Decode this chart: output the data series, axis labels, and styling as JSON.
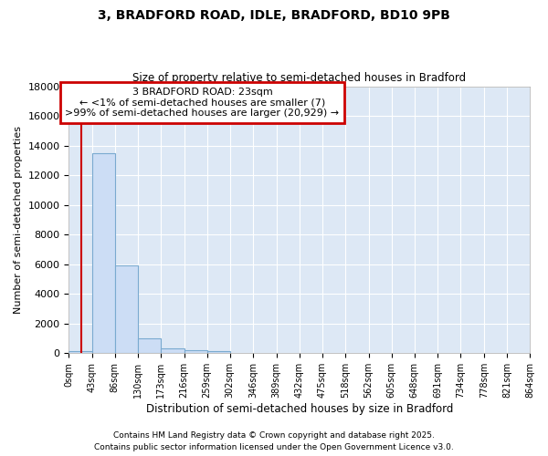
{
  "title1": "3, BRADFORD ROAD, IDLE, BRADFORD, BD10 9PB",
  "title2": "Size of property relative to semi-detached houses in Bradford",
  "xlabel": "Distribution of semi-detached houses by size in Bradford",
  "ylabel": "Number of semi-detached properties",
  "bin_edges": [
    0,
    43,
    86,
    130,
    173,
    216,
    259,
    302,
    346,
    389,
    432,
    475,
    518,
    562,
    605,
    648,
    691,
    734,
    778,
    821,
    864
  ],
  "bin_labels": [
    "0sqm",
    "43sqm",
    "86sqm",
    "130sqm",
    "173sqm",
    "216sqm",
    "259sqm",
    "302sqm",
    "346sqm",
    "389sqm",
    "432sqm",
    "475sqm",
    "518sqm",
    "562sqm",
    "605sqm",
    "648sqm",
    "691sqm",
    "734sqm",
    "778sqm",
    "821sqm",
    "864sqm"
  ],
  "bar_heights": [
    150,
    13500,
    5900,
    1000,
    350,
    200,
    130,
    0,
    0,
    0,
    0,
    0,
    0,
    0,
    0,
    0,
    0,
    0,
    0,
    0
  ],
  "bar_color": "#ccddf5",
  "bar_edge_color": "#7aaad0",
  "ylim": [
    0,
    18000
  ],
  "yticks": [
    0,
    2000,
    4000,
    6000,
    8000,
    10000,
    12000,
    14000,
    16000,
    18000
  ],
  "property_size": 23,
  "vline_color": "#cc0000",
  "annotation_line1": "3 BRADFORD ROAD: 23sqm",
  "annotation_line2": "← <1% of semi-detached houses are smaller (7)",
  "annotation_line3": ">99% of semi-detached houses are larger (20,929) →",
  "annotation_box_color": "#ffffff",
  "annotation_box_edge": "#cc0000",
  "footnote1": "Contains HM Land Registry data © Crown copyright and database right 2025.",
  "footnote2": "Contains public sector information licensed under the Open Government Licence v3.0.",
  "fig_background_color": "#ffffff",
  "plot_background": "#dde8f5",
  "grid_color": "#ffffff"
}
